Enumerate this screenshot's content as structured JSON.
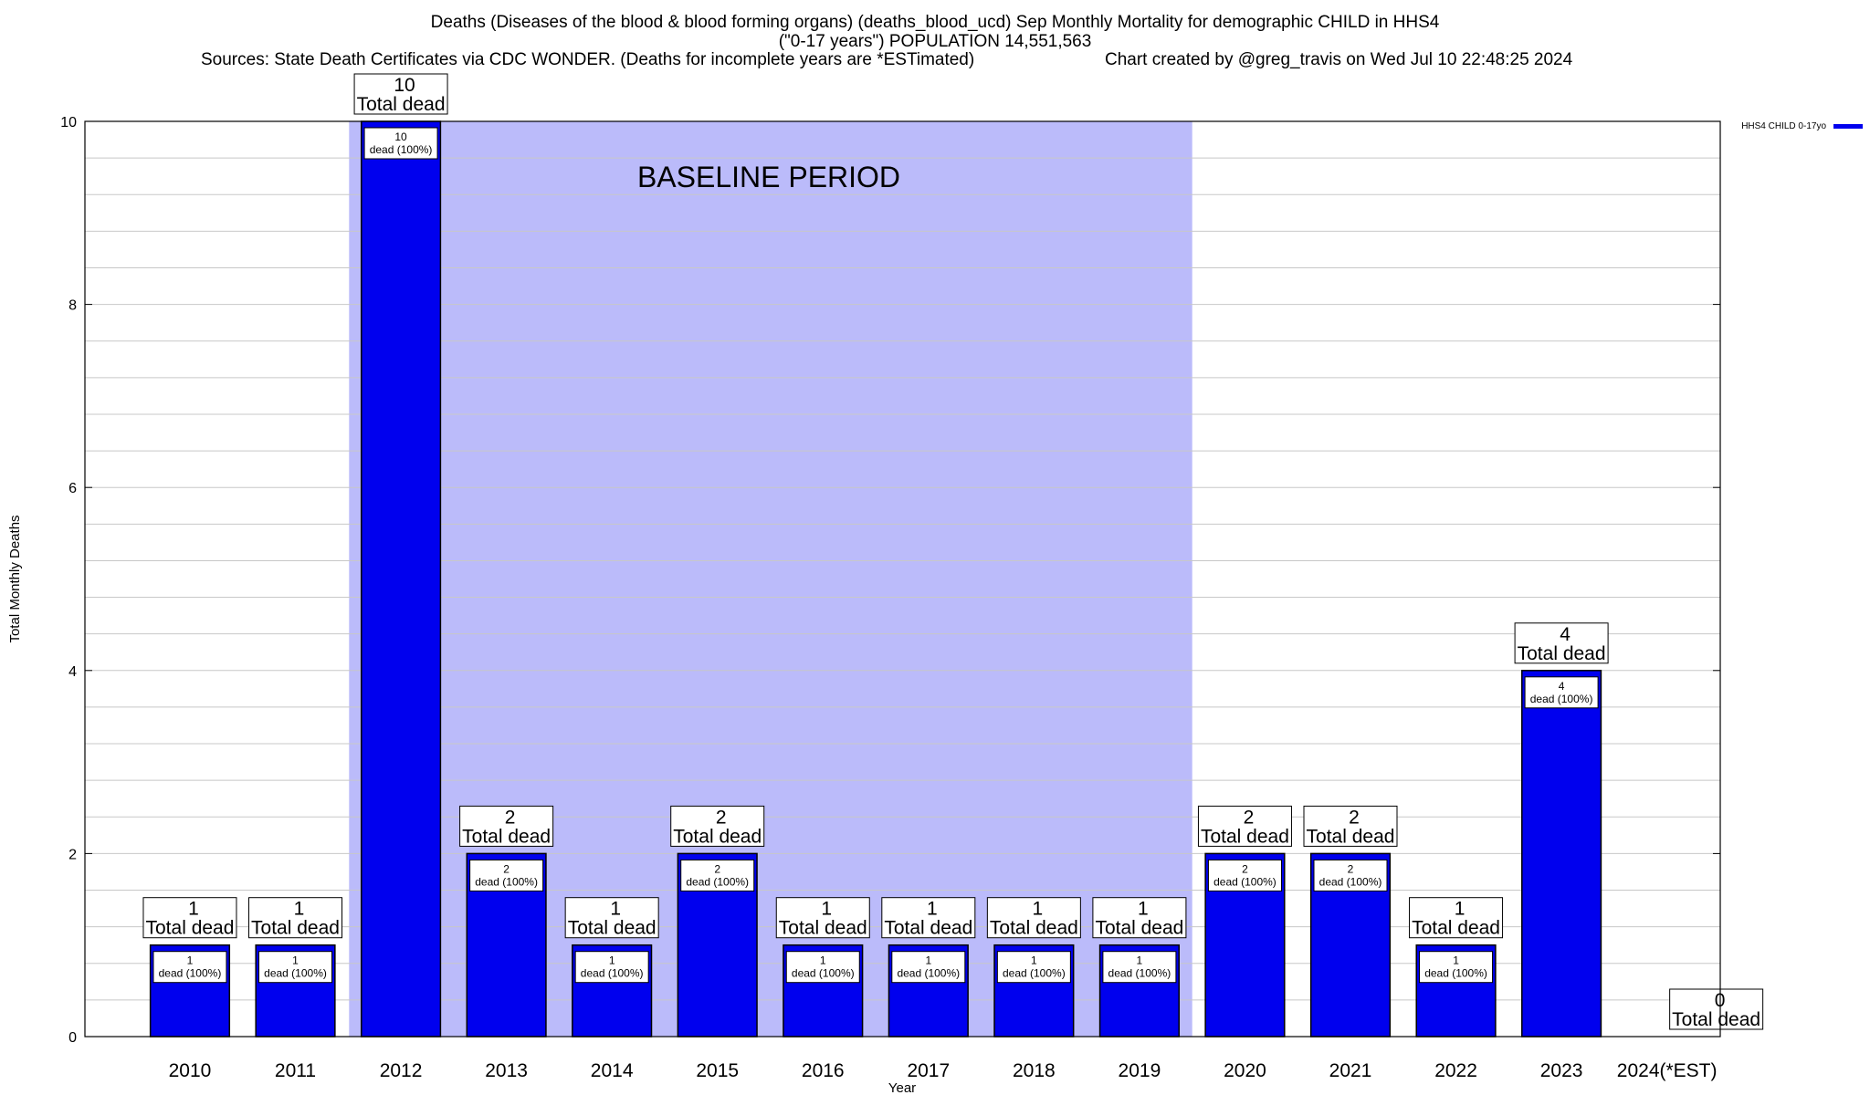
{
  "title": {
    "line1": "Deaths (Diseases of the blood & blood forming organs) (deaths_blood_ucd) Sep Monthly Mortality for demographic CHILD in HHS4",
    "line2": "(\"0-17 years\") POPULATION 14,551,563",
    "line3_left": "Sources: State Death Certificates via CDC WONDER. (Deaths for incomplete years are *ESTimated)",
    "line3_right": "Chart created by @greg_travis on Wed Jul 10 22:48:25 2024"
  },
  "chart_data": {
    "type": "bar",
    "categories": [
      "2010",
      "2011",
      "2012",
      "2013",
      "2014",
      "2015",
      "2016",
      "2017",
      "2018",
      "2019",
      "2020",
      "2021",
      "2022",
      "2023",
      "2024(*EST)"
    ],
    "series": [
      {
        "name": "HHS4 CHILD 0-17yo",
        "values": [
          1,
          1,
          10,
          2,
          1,
          2,
          1,
          1,
          1,
          1,
          2,
          2,
          1,
          4,
          0
        ],
        "color": "#0000ee"
      }
    ],
    "total_labels": [
      "1",
      "1",
      "10",
      "2",
      "1",
      "2",
      "1",
      "1",
      "1",
      "1",
      "2",
      "2",
      "1",
      "4",
      "0"
    ],
    "total_suffix": "Total dead",
    "inner_labels": [
      "1",
      "1",
      "10",
      "2",
      "1",
      "2",
      "1",
      "1",
      "1",
      "1",
      "2",
      "2",
      "1",
      "4",
      ""
    ],
    "inner_suffix": "dead (100%)",
    "baseline": {
      "start": "2012",
      "end": "2019",
      "label": "BASELINE PERIOD",
      "color": "#bbbbfa"
    },
    "xlabel": "Year",
    "ylabel": "Total Monthly Deaths",
    "ylim": [
      0,
      10
    ],
    "yticks": [
      0,
      2,
      4,
      6,
      8,
      10
    ],
    "minor_step": 0.4,
    "grid": true,
    "legend": "top-right"
  }
}
